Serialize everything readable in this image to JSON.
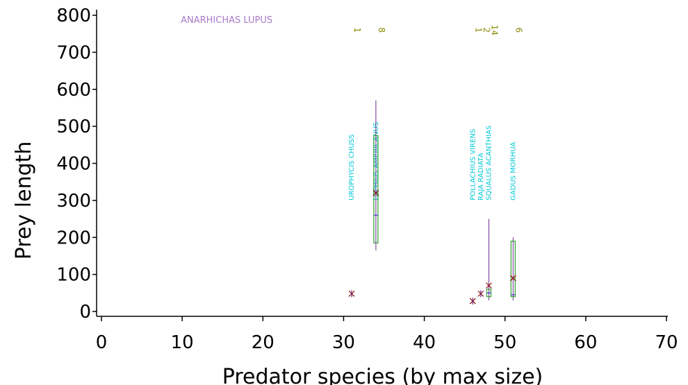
{
  "chart_data": {
    "type": "box",
    "xlabel": "Predator species (by max size)",
    "ylabel": "Prey length",
    "header_label": "ANARHICHAS LUPUS",
    "xlim": [
      0,
      70
    ],
    "ylim": [
      0,
      800
    ],
    "xticks": [
      0,
      10,
      20,
      30,
      40,
      50,
      60,
      70
    ],
    "yticks": [
      0,
      100,
      200,
      300,
      400,
      500,
      600,
      700,
      800
    ],
    "grid": false,
    "colors": {
      "header": "#a97bc7",
      "species": "#00c8d8",
      "count": "#8a8a00",
      "box": "#2e9e2e",
      "median": "#3333cc",
      "whisker": "#6a2a8a",
      "mean": "#8b0000"
    },
    "groups": [
      {
        "x": 31,
        "label": "UROPHYCIS CHUSS",
        "count": "1",
        "single": true,
        "mean": 48
      },
      {
        "x": 34,
        "label": "LOPHIUS AMERICANUS",
        "count": "8",
        "min": 165,
        "q1": 185,
        "median": 260,
        "q3": 475,
        "max": 570,
        "mean": 320
      },
      {
        "x": 46,
        "label": "POLLACHIUS VIRENS",
        "count": "1",
        "single": true,
        "mean": 28
      },
      {
        "x": 47,
        "label": "RAJA RADIATA",
        "count": "2",
        "single": true,
        "mean": 48
      },
      {
        "x": 48,
        "label": "SQUALUS ACANTHIAS",
        "count": "14",
        "min": 30,
        "q1": 40,
        "median": 50,
        "q3": 60,
        "max": 250,
        "mean": 70
      },
      {
        "x": 51,
        "label": "GADUS MORHUA",
        "count": "6",
        "min": 30,
        "q1": 40,
        "median": 45,
        "q3": 190,
        "max": 200,
        "mean": 90
      }
    ]
  }
}
